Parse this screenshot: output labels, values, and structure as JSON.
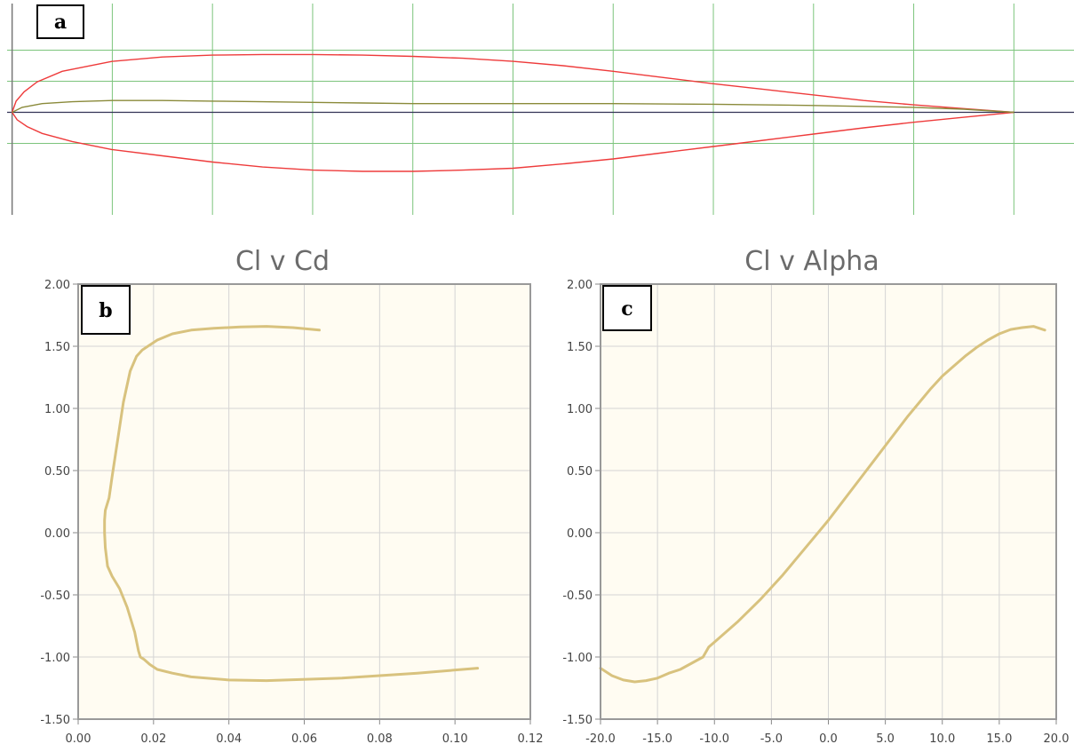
{
  "colors": {
    "grid_airfoil": "#7cc47c",
    "airfoil_outline": "#ee3b3b",
    "camber_line": "#8a8a3a",
    "chord_line": "#333355",
    "plot_bg": "#fffcf2",
    "plot_grid": "#d4d4d4",
    "curve": "#d8c27e",
    "frame": "#999999"
  },
  "chart_data": [
    {
      "type": "line",
      "panel_label": "a",
      "title": "",
      "description": "",
      "x_range": [
        -0.005,
        1.06
      ],
      "y_range": [
        -0.165,
        0.175
      ],
      "series": [
        {
          "role": "upper",
          "x": [
            0,
            0.004,
            0.012,
            0.025,
            0.05,
            0.1,
            0.15,
            0.2,
            0.25,
            0.3,
            0.35,
            0.4,
            0.45,
            0.5,
            0.55,
            0.6,
            0.65,
            0.7,
            0.75,
            0.8,
            0.85,
            0.9,
            0.95,
            1.0
          ],
          "y": [
            0,
            0.018,
            0.033,
            0.049,
            0.066,
            0.082,
            0.089,
            0.092,
            0.093,
            0.093,
            0.092,
            0.09,
            0.087,
            0.082,
            0.075,
            0.066,
            0.056,
            0.046,
            0.037,
            0.028,
            0.019,
            0.012,
            0.006,
            0
          ]
        },
        {
          "role": "lower",
          "x": [
            0,
            0.005,
            0.015,
            0.03,
            0.06,
            0.1,
            0.15,
            0.2,
            0.25,
            0.3,
            0.35,
            0.4,
            0.45,
            0.5,
            0.55,
            0.6,
            0.65,
            0.7,
            0.75,
            0.8,
            0.85,
            0.9,
            0.95,
            1.0
          ],
          "y": [
            0,
            -0.012,
            -0.023,
            -0.034,
            -0.047,
            -0.06,
            -0.07,
            -0.08,
            -0.088,
            -0.093,
            -0.095,
            -0.095,
            -0.093,
            -0.09,
            -0.083,
            -0.075,
            -0.065,
            -0.055,
            -0.045,
            -0.035,
            -0.025,
            -0.016,
            -0.008,
            0
          ]
        },
        {
          "role": "camber",
          "x": [
            0,
            0.01,
            0.03,
            0.06,
            0.1,
            0.15,
            0.2,
            0.25,
            0.3,
            0.35,
            0.4,
            0.5,
            0.6,
            0.7,
            0.8,
            0.9,
            0.95,
            1.0
          ],
          "y": [
            0,
            0.008,
            0.014,
            0.017,
            0.019,
            0.019,
            0.018,
            0.017,
            0.016,
            0.015,
            0.014,
            0.014,
            0.014,
            0.013,
            0.011,
            0.008,
            0.005,
            0
          ]
        }
      ]
    },
    {
      "type": "line",
      "panel_label": "b",
      "title": "Cl v Cd",
      "xlabel": "",
      "ylabel": "",
      "xlim": [
        0,
        0.12
      ],
      "ylim": [
        -1.5,
        2.0
      ],
      "x_ticks": [
        "0.00",
        "0.02",
        "0.04",
        "0.06",
        "0.08",
        "0.10",
        "0.12"
      ],
      "y_ticks": [
        "2.00",
        "1.50",
        "1.00",
        "0.50",
        "0.00",
        "-0.50",
        "-1.00",
        "-1.50"
      ],
      "grid": true,
      "series": [
        {
          "x": [
            0.106,
            0.09,
            0.07,
            0.05,
            0.04,
            0.03,
            0.025,
            0.021,
            0.019,
            0.0175,
            0.0165,
            0.016,
            0.015,
            0.013,
            0.011,
            0.009,
            0.0078,
            0.0072,
            0.007,
            0.007,
            0.0072,
            0.0075,
            0.0082,
            0.009,
            0.0105,
            0.012,
            0.0138,
            0.0155,
            0.017,
            0.0185,
            0.021,
            0.025,
            0.03,
            0.036,
            0.043,
            0.05,
            0.057,
            0.064
          ],
          "y": [
            -1.09,
            -1.13,
            -1.17,
            -1.19,
            -1.185,
            -1.16,
            -1.13,
            -1.1,
            -1.06,
            -1.02,
            -1.0,
            -0.95,
            -0.8,
            -0.6,
            -0.45,
            -0.35,
            -0.27,
            -0.12,
            0.0,
            0.1,
            0.18,
            0.21,
            0.28,
            0.45,
            0.75,
            1.05,
            1.3,
            1.42,
            1.47,
            1.5,
            1.55,
            1.6,
            1.63,
            1.645,
            1.655,
            1.66,
            1.65,
            1.63
          ]
        }
      ]
    },
    {
      "type": "line",
      "panel_label": "c",
      "title": "Cl v Alpha",
      "xlabel": "",
      "ylabel": "",
      "xlim": [
        -20,
        20
      ],
      "ylim": [
        -1.5,
        2.0
      ],
      "x_ticks": [
        "-20.0",
        "-15.0",
        "-10.0",
        "-5.0",
        "0.0",
        "5.0",
        "10.0",
        "15.0",
        "20.0"
      ],
      "y_ticks": [
        "2.00",
        "1.50",
        "1.00",
        "0.50",
        "0.00",
        "-0.50",
        "-1.00",
        "-1.50"
      ],
      "grid": true,
      "series": [
        {
          "x": [
            -20,
            -19,
            -18,
            -17,
            -16,
            -15,
            -14,
            -13,
            -12,
            -11,
            -10.5,
            -10,
            -9,
            -8,
            -7,
            -6,
            -5,
            -4,
            -3,
            -2,
            -1,
            0,
            1,
            2,
            3,
            4,
            5,
            6,
            7,
            8,
            9,
            10,
            11,
            12,
            13,
            14,
            15,
            16,
            17,
            18,
            19
          ],
          "y": [
            -1.09,
            -1.15,
            -1.185,
            -1.2,
            -1.19,
            -1.17,
            -1.13,
            -1.1,
            -1.05,
            -1.0,
            -0.92,
            -0.88,
            -0.8,
            -0.72,
            -0.63,
            -0.54,
            -0.44,
            -0.34,
            -0.23,
            -0.12,
            -0.01,
            0.1,
            0.22,
            0.34,
            0.46,
            0.58,
            0.7,
            0.82,
            0.94,
            1.05,
            1.16,
            1.26,
            1.34,
            1.42,
            1.49,
            1.55,
            1.6,
            1.635,
            1.65,
            1.66,
            1.63
          ]
        }
      ]
    }
  ]
}
